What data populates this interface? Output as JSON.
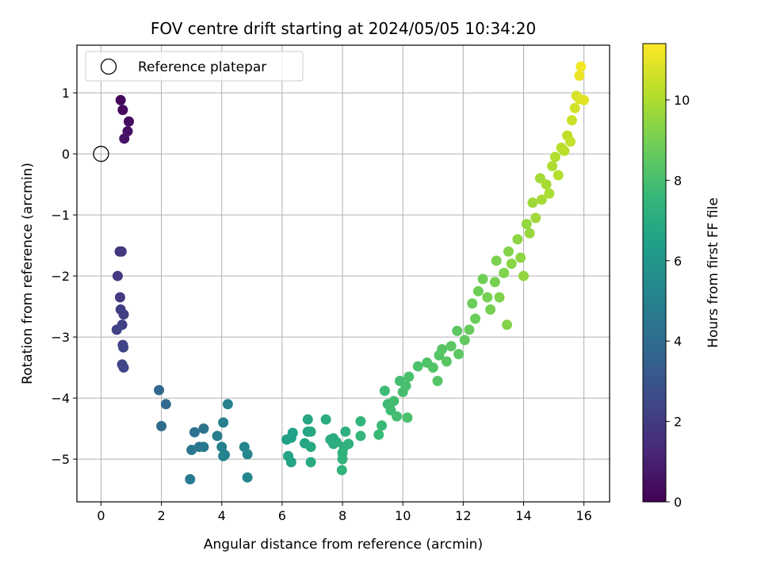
{
  "chart_data": {
    "type": "scatter",
    "title": "FOV centre drift starting at 2024/05/05 10:34:20",
    "xlabel": "Angular distance from reference (arcmin)",
    "ylabel": "Rotation from reference (arcmin)",
    "xlim": [
      -0.8,
      16.85
    ],
    "ylim": [
      -5.7,
      1.78
    ],
    "xticks": [
      0,
      2,
      4,
      6,
      8,
      10,
      12,
      14,
      16
    ],
    "yticks": [
      1,
      0,
      -1,
      -2,
      -3,
      -4,
      -5
    ],
    "xtick_labels": [
      "0",
      "2",
      "4",
      "6",
      "8",
      "10",
      "12",
      "14",
      "16"
    ],
    "ytick_labels": [
      "1",
      "0",
      "−1",
      "−2",
      "−3",
      "−4",
      "−5"
    ],
    "grid": true,
    "colormap": "viridis",
    "colorbar": {
      "label": "Hours from first FF file",
      "range": [
        0,
        11.4
      ],
      "ticks": [
        0,
        2,
        4,
        6,
        8,
        10
      ],
      "tick_labels": [
        "0",
        "2",
        "4",
        "6",
        "8",
        "10"
      ]
    },
    "legend": {
      "position": "top-left",
      "label": "Reference platepar"
    },
    "reference_point": {
      "x": 0,
      "y": 0
    },
    "points": [
      {
        "x": 0.65,
        "y": 0.88,
        "c": 0.2
      },
      {
        "x": 0.72,
        "y": 0.72,
        "c": 0.3
      },
      {
        "x": 0.92,
        "y": 0.53,
        "c": 0.4
      },
      {
        "x": 0.88,
        "y": 0.37,
        "c": 0.5
      },
      {
        "x": 0.77,
        "y": 0.25,
        "c": 0.6
      },
      {
        "x": 0.62,
        "y": -1.6,
        "c": 1.8
      },
      {
        "x": 0.68,
        "y": -1.6,
        "c": 1.85
      },
      {
        "x": 0.55,
        "y": -2.0,
        "c": 1.9
      },
      {
        "x": 0.63,
        "y": -2.35,
        "c": 2.0
      },
      {
        "x": 0.65,
        "y": -2.55,
        "c": 2.1
      },
      {
        "x": 0.75,
        "y": -2.63,
        "c": 2.15
      },
      {
        "x": 0.7,
        "y": -2.8,
        "c": 2.2
      },
      {
        "x": 0.52,
        "y": -2.88,
        "c": 2.25
      },
      {
        "x": 0.72,
        "y": -3.13,
        "c": 2.3
      },
      {
        "x": 0.74,
        "y": -3.17,
        "c": 2.35
      },
      {
        "x": 0.7,
        "y": -3.45,
        "c": 2.4
      },
      {
        "x": 0.75,
        "y": -3.5,
        "c": 2.45
      },
      {
        "x": 1.92,
        "y": -3.87,
        "c": 3.8
      },
      {
        "x": 2.15,
        "y": -4.1,
        "c": 3.9
      },
      {
        "x": 2.0,
        "y": -4.46,
        "c": 4.0
      },
      {
        "x": 3.1,
        "y": -4.56,
        "c": 4.3
      },
      {
        "x": 3.4,
        "y": -4.5,
        "c": 4.4
      },
      {
        "x": 3.0,
        "y": -4.85,
        "c": 4.5
      },
      {
        "x": 3.25,
        "y": -4.8,
        "c": 4.55
      },
      {
        "x": 3.4,
        "y": -4.8,
        "c": 4.6
      },
      {
        "x": 2.95,
        "y": -5.33,
        "c": 4.7
      },
      {
        "x": 3.85,
        "y": -4.62,
        "c": 4.8
      },
      {
        "x": 4.05,
        "y": -4.4,
        "c": 4.9
      },
      {
        "x": 4.2,
        "y": -4.1,
        "c": 5.0
      },
      {
        "x": 4.0,
        "y": -4.8,
        "c": 5.0
      },
      {
        "x": 4.05,
        "y": -4.95,
        "c": 5.1
      },
      {
        "x": 4.1,
        "y": -4.93,
        "c": 5.1
      },
      {
        "x": 4.75,
        "y": -4.8,
        "c": 5.2
      },
      {
        "x": 4.85,
        "y": -4.92,
        "c": 5.3
      },
      {
        "x": 4.85,
        "y": -5.3,
        "c": 5.3
      },
      {
        "x": 6.15,
        "y": -4.68,
        "c": 6.4
      },
      {
        "x": 6.3,
        "y": -4.65,
        "c": 6.5
      },
      {
        "x": 6.35,
        "y": -4.57,
        "c": 6.5
      },
      {
        "x": 6.2,
        "y": -4.95,
        "c": 6.6
      },
      {
        "x": 6.3,
        "y": -5.05,
        "c": 6.6
      },
      {
        "x": 6.75,
        "y": -4.74,
        "c": 6.7
      },
      {
        "x": 6.85,
        "y": -4.55,
        "c": 6.7
      },
      {
        "x": 6.95,
        "y": -4.55,
        "c": 6.8
      },
      {
        "x": 6.85,
        "y": -4.35,
        "c": 6.8
      },
      {
        "x": 6.95,
        "y": -4.8,
        "c": 6.85
      },
      {
        "x": 6.95,
        "y": -5.05,
        "c": 6.9
      },
      {
        "x": 7.45,
        "y": -4.35,
        "c": 7.0
      },
      {
        "x": 7.6,
        "y": -4.68,
        "c": 7.0
      },
      {
        "x": 7.7,
        "y": -4.66,
        "c": 7.05
      },
      {
        "x": 7.8,
        "y": -4.72,
        "c": 7.1
      },
      {
        "x": 7.7,
        "y": -4.75,
        "c": 7.1
      },
      {
        "x": 8.1,
        "y": -4.55,
        "c": 7.2
      },
      {
        "x": 8.05,
        "y": -4.8,
        "c": 7.2
      },
      {
        "x": 8.0,
        "y": -4.9,
        "c": 7.3
      },
      {
        "x": 8.2,
        "y": -4.75,
        "c": 7.3
      },
      {
        "x": 8.0,
        "y": -5.0,
        "c": 7.4
      },
      {
        "x": 7.98,
        "y": -5.18,
        "c": 7.4
      },
      {
        "x": 8.6,
        "y": -4.38,
        "c": 7.5
      },
      {
        "x": 8.6,
        "y": -4.62,
        "c": 7.5
      },
      {
        "x": 9.2,
        "y": -4.6,
        "c": 7.7
      },
      {
        "x": 9.3,
        "y": -4.45,
        "c": 7.7
      },
      {
        "x": 9.4,
        "y": -3.88,
        "c": 7.8
      },
      {
        "x": 9.5,
        "y": -4.1,
        "c": 7.8
      },
      {
        "x": 9.6,
        "y": -4.2,
        "c": 7.85
      },
      {
        "x": 9.7,
        "y": -4.05,
        "c": 7.9
      },
      {
        "x": 9.8,
        "y": -4.3,
        "c": 7.95
      },
      {
        "x": 9.9,
        "y": -3.72,
        "c": 8.0
      },
      {
        "x": 10.0,
        "y": -3.9,
        "c": 8.0
      },
      {
        "x": 10.1,
        "y": -3.8,
        "c": 8.05
      },
      {
        "x": 10.15,
        "y": -4.32,
        "c": 8.1
      },
      {
        "x": 10.2,
        "y": -3.65,
        "c": 8.1
      },
      {
        "x": 10.5,
        "y": -3.48,
        "c": 8.15
      },
      {
        "x": 10.8,
        "y": -3.42,
        "c": 8.2
      },
      {
        "x": 11.0,
        "y": -3.5,
        "c": 8.25
      },
      {
        "x": 11.2,
        "y": -3.3,
        "c": 8.3
      },
      {
        "x": 11.15,
        "y": -3.72,
        "c": 8.3
      },
      {
        "x": 11.3,
        "y": -3.2,
        "c": 8.35
      },
      {
        "x": 11.45,
        "y": -3.4,
        "c": 8.4
      },
      {
        "x": 11.6,
        "y": -3.15,
        "c": 8.45
      },
      {
        "x": 11.85,
        "y": -3.28,
        "c": 8.5
      },
      {
        "x": 11.8,
        "y": -2.9,
        "c": 8.5
      },
      {
        "x": 12.05,
        "y": -3.05,
        "c": 8.6
      },
      {
        "x": 12.2,
        "y": -2.88,
        "c": 8.7
      },
      {
        "x": 12.4,
        "y": -2.7,
        "c": 8.75
      },
      {
        "x": 12.3,
        "y": -2.45,
        "c": 8.8
      },
      {
        "x": 12.5,
        "y": -2.25,
        "c": 8.85
      },
      {
        "x": 12.65,
        "y": -2.05,
        "c": 8.9
      },
      {
        "x": 12.8,
        "y": -2.35,
        "c": 9.0
      },
      {
        "x": 12.9,
        "y": -2.55,
        "c": 9.0
      },
      {
        "x": 13.05,
        "y": -2.1,
        "c": 9.05
      },
      {
        "x": 13.1,
        "y": -1.75,
        "c": 9.1
      },
      {
        "x": 13.2,
        "y": -2.35,
        "c": 9.15
      },
      {
        "x": 13.35,
        "y": -1.95,
        "c": 9.2
      },
      {
        "x": 13.5,
        "y": -1.6,
        "c": 9.25
      },
      {
        "x": 13.45,
        "y": -2.8,
        "c": 9.3
      },
      {
        "x": 13.6,
        "y": -1.8,
        "c": 9.35
      },
      {
        "x": 13.8,
        "y": -1.4,
        "c": 9.4
      },
      {
        "x": 13.9,
        "y": -1.7,
        "c": 9.45
      },
      {
        "x": 14.0,
        "y": -2.0,
        "c": 9.5
      },
      {
        "x": 14.1,
        "y": -1.15,
        "c": 9.55
      },
      {
        "x": 14.2,
        "y": -1.3,
        "c": 9.6
      },
      {
        "x": 14.3,
        "y": -0.8,
        "c": 9.7
      },
      {
        "x": 14.4,
        "y": -1.05,
        "c": 9.75
      },
      {
        "x": 14.55,
        "y": -0.4,
        "c": 9.8
      },
      {
        "x": 14.6,
        "y": -0.75,
        "c": 9.85
      },
      {
        "x": 14.75,
        "y": -0.5,
        "c": 9.9
      },
      {
        "x": 14.85,
        "y": -0.65,
        "c": 9.95
      },
      {
        "x": 14.95,
        "y": -0.2,
        "c": 10.0
      },
      {
        "x": 15.05,
        "y": -0.05,
        "c": 10.05
      },
      {
        "x": 15.15,
        "y": -0.35,
        "c": 10.1
      },
      {
        "x": 15.25,
        "y": 0.1,
        "c": 10.2
      },
      {
        "x": 15.35,
        "y": 0.05,
        "c": 10.25
      },
      {
        "x": 15.45,
        "y": 0.3,
        "c": 10.3
      },
      {
        "x": 15.55,
        "y": 0.2,
        "c": 10.4
      },
      {
        "x": 15.6,
        "y": 0.55,
        "c": 10.5
      },
      {
        "x": 15.7,
        "y": 0.75,
        "c": 10.6
      },
      {
        "x": 15.75,
        "y": 0.95,
        "c": 10.7
      },
      {
        "x": 15.85,
        "y": 0.9,
        "c": 10.8
      },
      {
        "x": 16.0,
        "y": 0.88,
        "c": 10.9
      },
      {
        "x": 15.85,
        "y": 1.28,
        "c": 11.1
      },
      {
        "x": 15.9,
        "y": 1.43,
        "c": 11.2
      }
    ]
  }
}
